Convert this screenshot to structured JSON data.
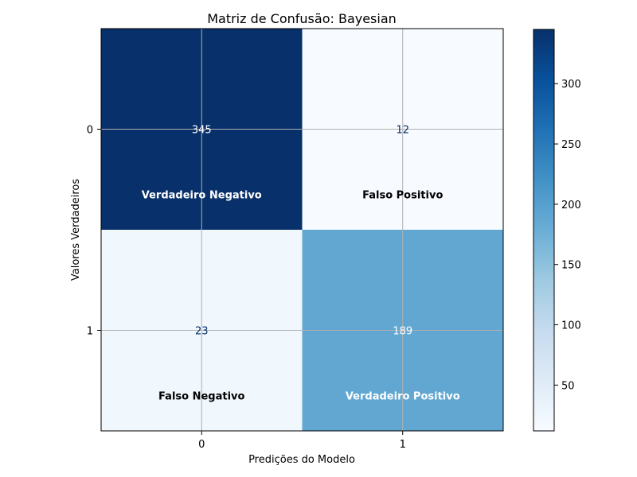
{
  "chart_data": {
    "type": "heatmap",
    "title": "Matriz de Confusão: Bayesian",
    "xlabel": "Predições do Modelo",
    "ylabel": "Valores Verdadeiros",
    "x_categories": [
      "0",
      "1"
    ],
    "y_categories": [
      "0",
      "1"
    ],
    "values": [
      [
        345,
        12
      ],
      [
        23,
        189
      ]
    ],
    "value_labels": [
      [
        "345",
        "12"
      ],
      [
        "23",
        "189"
      ]
    ],
    "cell_labels": [
      [
        "Verdadeiro Negativo",
        "Falso Positivo"
      ],
      [
        "Falso Negativo",
        "Verdadeiro Positivo"
      ]
    ],
    "colormap": "Blues",
    "colorbar": {
      "ticks": [
        50,
        100,
        150,
        200,
        250,
        300
      ],
      "tick_labels": [
        "50",
        "100",
        "150",
        "200",
        "250",
        "300"
      ],
      "vmin": 12,
      "vmax": 345
    },
    "grid": true
  }
}
